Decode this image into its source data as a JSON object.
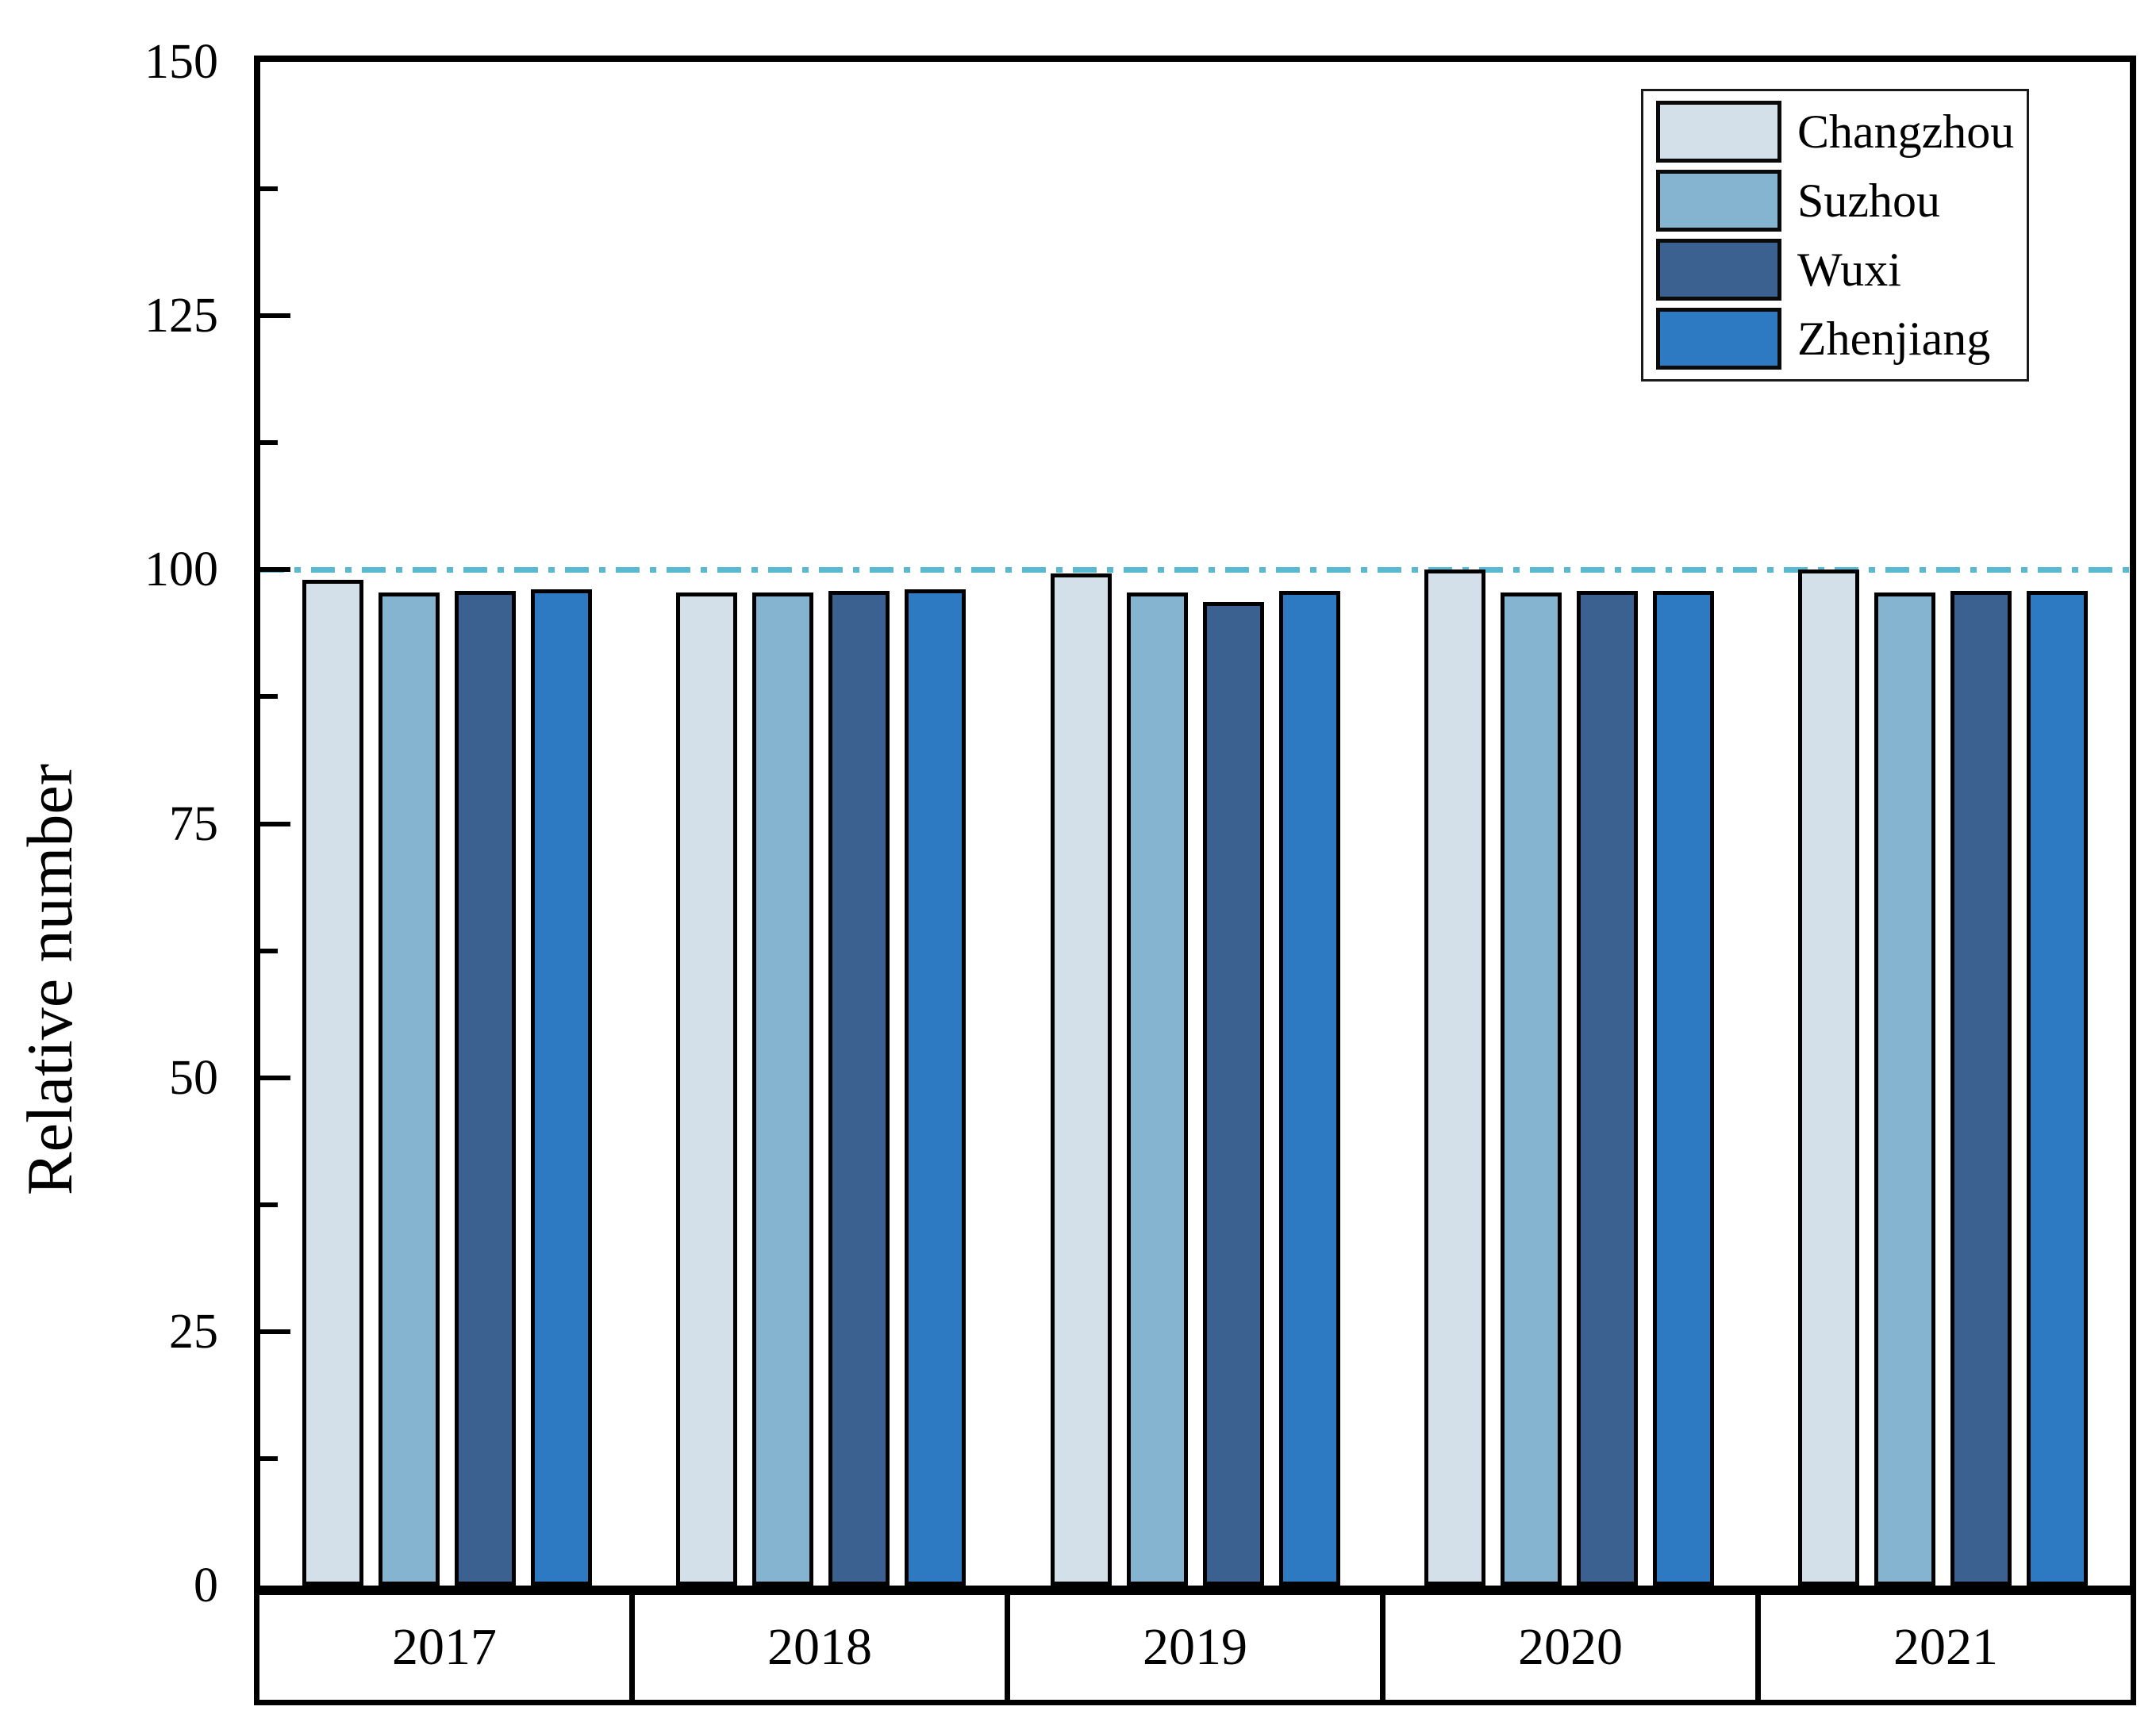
{
  "chart_data": {
    "type": "bar",
    "title": "",
    "xlabel": "",
    "ylabel": "Relative number",
    "categories": [
      "2017",
      "2018",
      "2019",
      "2020",
      "2021"
    ],
    "series": [
      {
        "name": "Changzhou",
        "color": "#d4e0e9",
        "values": [
          99.0,
          97.8,
          99.6,
          100.0,
          100.0
        ]
      },
      {
        "name": "Suzhou",
        "color": "#84b4d0",
        "values": [
          97.8,
          97.8,
          97.8,
          97.8,
          97.8
        ]
      },
      {
        "name": "Wuxi",
        "color": "#3a6190",
        "values": [
          97.9,
          97.9,
          96.8,
          97.9,
          97.9
        ]
      },
      {
        "name": "Zhenjiang",
        "color": "#2e7ac2",
        "values": [
          98.1,
          98.1,
          97.9,
          97.9,
          97.9
        ]
      }
    ],
    "bar_outline_color": "#000000",
    "reference_line": {
      "value": 100,
      "style": "dash-dot",
      "color": "#5ab9d2"
    },
    "y_axis": {
      "min": 0,
      "max": 150,
      "major_tick_step": 25,
      "minor_tick_step": 12.5,
      "tick_labels": [
        "0",
        "25",
        "50",
        "75",
        "100",
        "125",
        "150"
      ],
      "ticks_direction": "in"
    },
    "legend": {
      "position": "top-right"
    },
    "grid": "off"
  }
}
